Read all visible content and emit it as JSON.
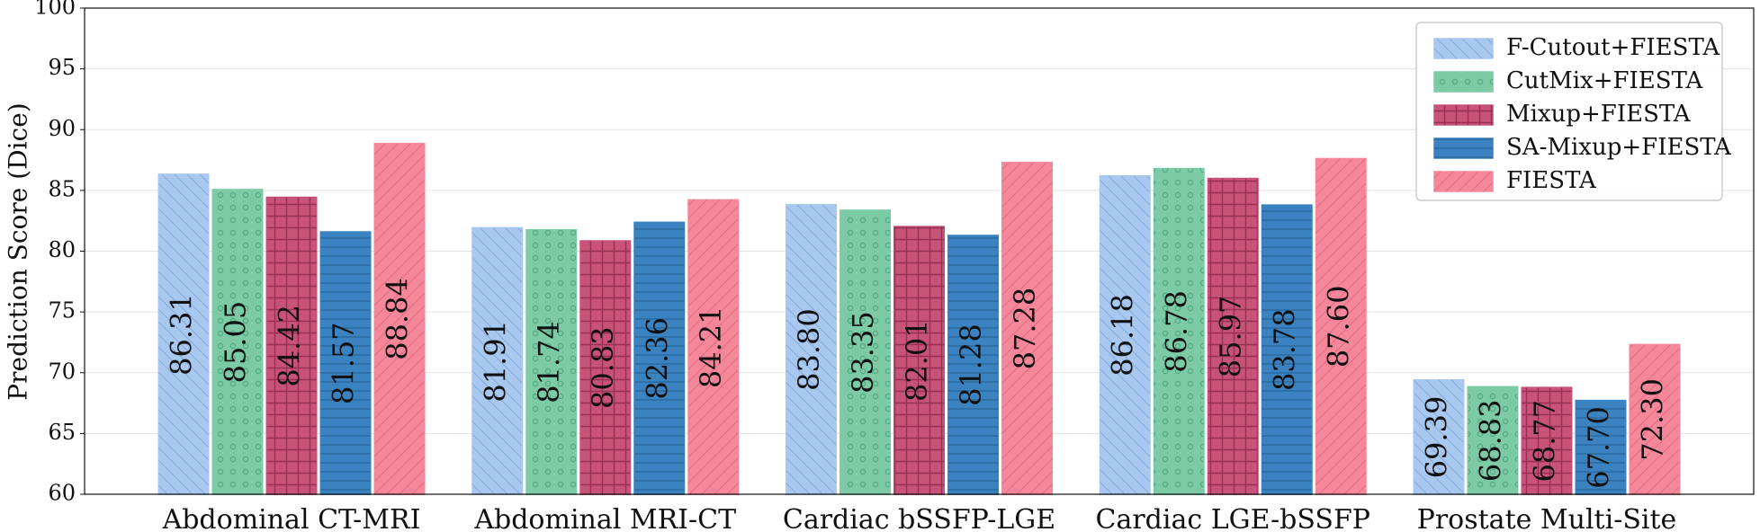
{
  "chart_data": {
    "type": "bar",
    "ylabel": "Prediction Score (Dice)",
    "categories": [
      "Abdominal CT-MRI",
      "Abdominal MRI-CT",
      "Cardiac bSSFP-LGE",
      "Cardiac LGE-bSSFP",
      "Prostate Multi-Site"
    ],
    "series": [
      {
        "name": "F-Cutout+FIESTA",
        "color": "#a8c8f0",
        "values": [
          86.31,
          81.91,
          83.8,
          86.18,
          69.39
        ],
        "value_labels": [
          "86.31",
          "81.91",
          "83.80",
          "86.18",
          "69.39"
        ]
      },
      {
        "name": "CutMix+FIESTA",
        "color": "#7ccaa6",
        "values": [
          85.05,
          81.74,
          83.35,
          86.78,
          68.83
        ],
        "value_labels": [
          "85.05",
          "81.74",
          "83.35",
          "86.78",
          "68.83"
        ]
      },
      {
        "name": "Mixup+FIESTA",
        "color": "#c85379",
        "values": [
          84.42,
          80.83,
          82.01,
          85.97,
          68.77
        ],
        "value_labels": [
          "84.42",
          "80.83",
          "82.01",
          "85.97",
          "68.77"
        ]
      },
      {
        "name": "SA-Mixup+FIESTA",
        "color": "#3a82c0",
        "values": [
          81.57,
          82.36,
          81.28,
          83.78,
          67.7
        ],
        "value_labels": [
          "81.57",
          "82.36",
          "81.28",
          "83.78",
          "67.70"
        ]
      },
      {
        "name": "FIESTA",
        "color": "#f5879b",
        "values": [
          88.84,
          84.21,
          87.28,
          87.6,
          72.3
        ],
        "value_labels": [
          "88.84",
          "84.21",
          "87.28",
          "87.60",
          "72.30"
        ]
      }
    ],
    "ylim": [
      60,
      100
    ],
    "yticks": [
      60,
      65,
      70,
      75,
      80,
      85,
      90,
      95,
      100
    ],
    "grid": true,
    "legend": "upper right"
  }
}
